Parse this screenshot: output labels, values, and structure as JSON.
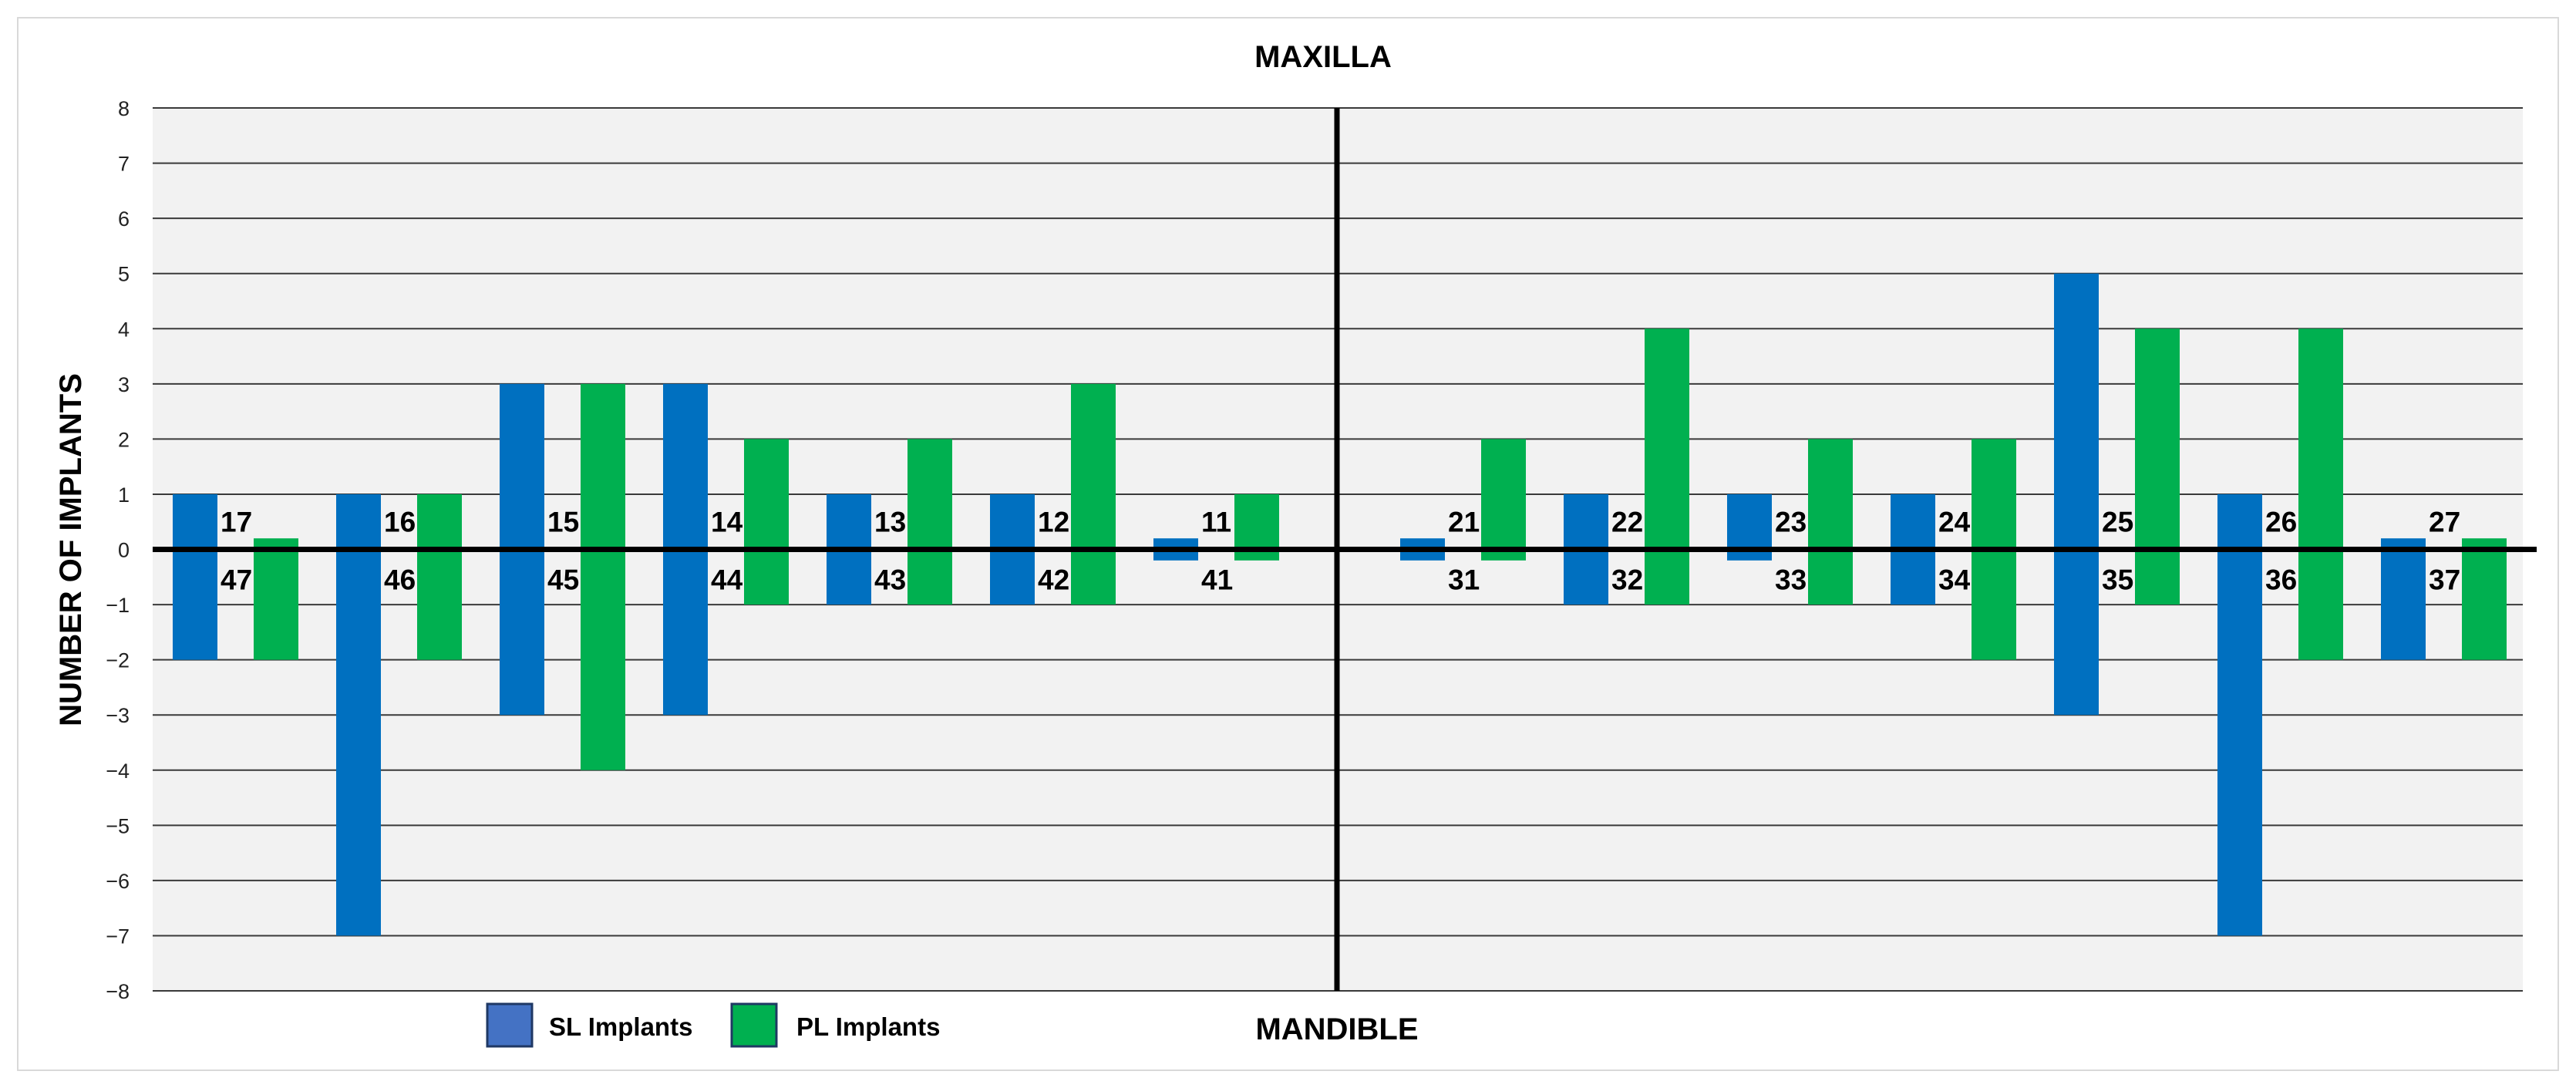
{
  "chart_data": {
    "type": "bar",
    "title": "MAXILLA",
    "bottom_label": "MANDIBLE",
    "ylabel": "NUMBER OF IMPLANTS",
    "ylim": [
      -8,
      8
    ],
    "yticks": [
      "8",
      "7",
      "6",
      "5",
      "4",
      "3",
      "2",
      "1",
      "0",
      "−1",
      "−2",
      "−3",
      "−4",
      "−5",
      "−6",
      "−7",
      "−8"
    ],
    "grid": true,
    "legend_position": "bottom-left",
    "colors": {
      "sl": "#0070c0",
      "pl": "#00b050",
      "plot_bg": "#f2f2f2"
    },
    "series": [
      {
        "name": "SL Implants",
        "legend_swatch": "#4472c4"
      },
      {
        "name": "PL Implants",
        "legend_swatch": "#00b050"
      }
    ],
    "groups": [
      {
        "maxilla_tooth": "17",
        "mandible_tooth": "47",
        "sl_maxilla": 1,
        "sl_mandible": -2,
        "pl_maxilla": 0.2,
        "pl_mandible": -2
      },
      {
        "maxilla_tooth": "16",
        "mandible_tooth": "46",
        "sl_maxilla": 1,
        "sl_mandible": -7,
        "pl_maxilla": 1,
        "pl_mandible": -2
      },
      {
        "maxilla_tooth": "15",
        "mandible_tooth": "45",
        "sl_maxilla": 3,
        "sl_mandible": -3,
        "pl_maxilla": 3,
        "pl_mandible": -4
      },
      {
        "maxilla_tooth": "14",
        "mandible_tooth": "44",
        "sl_maxilla": 3,
        "sl_mandible": -3,
        "pl_maxilla": 2,
        "pl_mandible": -1
      },
      {
        "maxilla_tooth": "13",
        "mandible_tooth": "43",
        "sl_maxilla": 1,
        "sl_mandible": -1,
        "pl_maxilla": 2,
        "pl_mandible": -1
      },
      {
        "maxilla_tooth": "12",
        "mandible_tooth": "42",
        "sl_maxilla": 1,
        "sl_mandible": -1,
        "pl_maxilla": 3,
        "pl_mandible": -1
      },
      {
        "maxilla_tooth": "11",
        "mandible_tooth": "41",
        "sl_maxilla": 0.2,
        "sl_mandible": -0.2,
        "pl_maxilla": 1,
        "pl_mandible": -0.2
      },
      {
        "maxilla_tooth": "21",
        "mandible_tooth": "31",
        "sl_maxilla": 0.2,
        "sl_mandible": -0.2,
        "pl_maxilla": 2,
        "pl_mandible": -0.2
      },
      {
        "maxilla_tooth": "22",
        "mandible_tooth": "32",
        "sl_maxilla": 1,
        "sl_mandible": -1,
        "pl_maxilla": 4,
        "pl_mandible": -1
      },
      {
        "maxilla_tooth": "23",
        "mandible_tooth": "33",
        "sl_maxilla": 1,
        "sl_mandible": -0.2,
        "pl_maxilla": 2,
        "pl_mandible": -1
      },
      {
        "maxilla_tooth": "24",
        "mandible_tooth": "34",
        "sl_maxilla": 1,
        "sl_mandible": -1,
        "pl_maxilla": 2,
        "pl_mandible": -2
      },
      {
        "maxilla_tooth": "25",
        "mandible_tooth": "35",
        "sl_maxilla": 5,
        "sl_mandible": -3,
        "pl_maxilla": 4,
        "pl_mandible": -1
      },
      {
        "maxilla_tooth": "26",
        "mandible_tooth": "36",
        "sl_maxilla": 1,
        "sl_mandible": -7,
        "pl_maxilla": 4,
        "pl_mandible": -2
      },
      {
        "maxilla_tooth": "27",
        "mandible_tooth": "37",
        "sl_maxilla": 0.2,
        "sl_mandible": -2,
        "pl_maxilla": 0.2,
        "pl_mandible": -2
      }
    ]
  }
}
